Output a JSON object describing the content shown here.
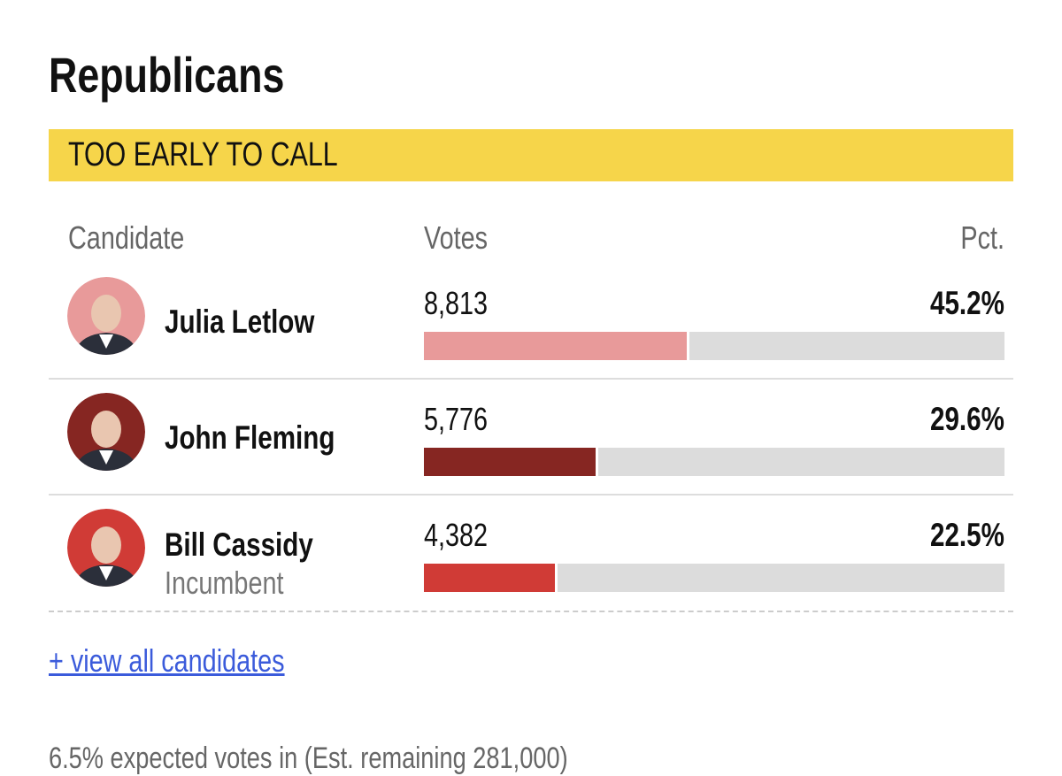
{
  "title": "Republicans",
  "status": "TOO EARLY TO CALL",
  "columns": {
    "candidate": "Candidate",
    "votes": "Votes",
    "pct": "Pct."
  },
  "candidates": [
    {
      "name": "Julia Letlow",
      "votes": {
        "value": 8813,
        "label": "8,813"
      },
      "pct": {
        "value": 45.2,
        "label": "45.2%"
      },
      "color": "#e89a9a"
    },
    {
      "name": "John Fleming",
      "votes": {
        "value": 5776,
        "label": "5,776"
      },
      "pct": {
        "value": 29.6,
        "label": "29.6%"
      },
      "color": "#862622"
    },
    {
      "name": "Bill Cassidy",
      "note": "Incumbent",
      "votes": {
        "value": 4382,
        "label": "4,382"
      },
      "pct": {
        "value": 22.5,
        "label": "22.5%"
      },
      "color": "#d03b36"
    }
  ],
  "link": "+ view all candidates",
  "footer": "6.5% expected votes in (Est. remaining 281,000)"
}
